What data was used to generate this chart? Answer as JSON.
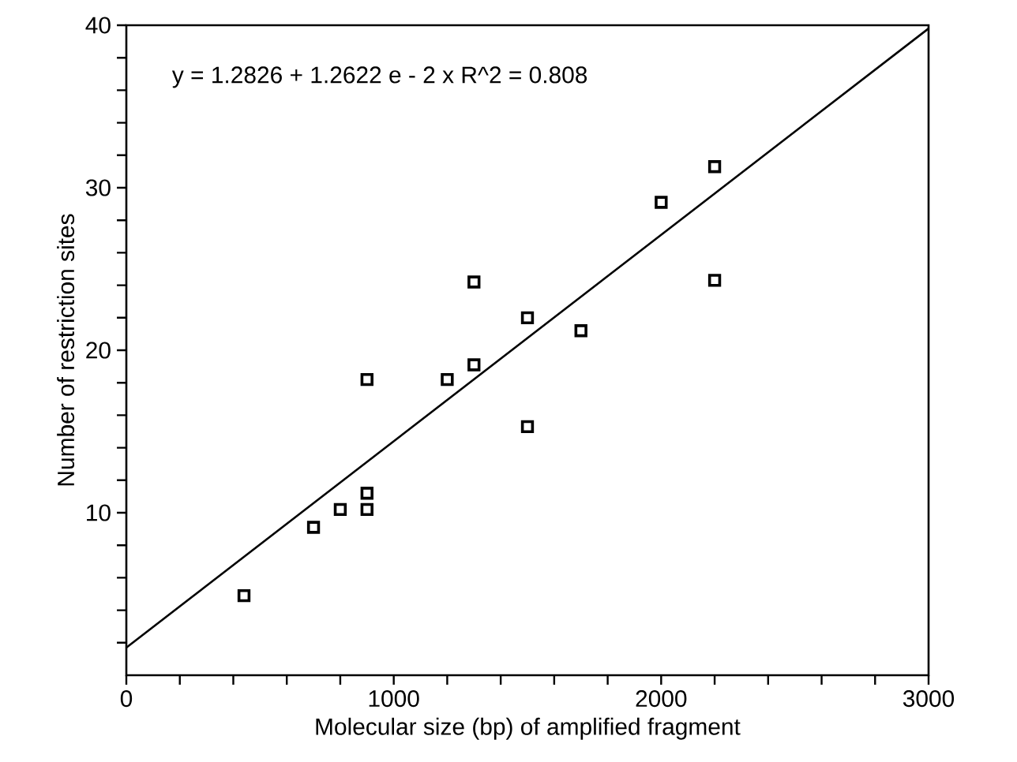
{
  "chart_data": {
    "type": "scatter",
    "xlabel": "Molecular size (bp) of amplified fragment",
    "ylabel": "Number of restriction sites",
    "annotations": [
      "y = 1.2826 + 1.2622 e - 2 x   R^2 = 0.808"
    ],
    "xlim": [
      0,
      3000
    ],
    "ylim": [
      0,
      40
    ],
    "xticks": [
      0,
      {
        "value": 200,
        "label": null
      },
      {
        "value": 400,
        "label": null
      },
      {
        "value": 600,
        "label": null
      },
      {
        "value": 800,
        "label": null
      },
      1000,
      {
        "value": 1200,
        "label": null
      },
      {
        "value": 1400,
        "label": null
      },
      {
        "value": 1600,
        "label": null
      },
      {
        "value": 1800,
        "label": null
      },
      2000,
      {
        "value": 2200,
        "label": null
      },
      {
        "value": 2400,
        "label": null
      },
      {
        "value": 2600,
        "label": null
      },
      {
        "value": 2800,
        "label": null
      },
      3000
    ],
    "yticks": [
      {
        "value": 2,
        "label": null
      },
      {
        "value": 4,
        "label": null
      },
      {
        "value": 6,
        "label": null
      },
      {
        "value": 8,
        "label": null
      },
      10,
      {
        "value": 12,
        "label": null
      },
      {
        "value": 14,
        "label": null
      },
      {
        "value": 16,
        "label": null
      },
      {
        "value": 18,
        "label": null
      },
      20,
      {
        "value": 22,
        "label": null
      },
      {
        "value": 24,
        "label": null
      },
      {
        "value": 26,
        "label": null
      },
      {
        "value": 28,
        "label": null
      },
      30,
      {
        "value": 32,
        "label": null
      },
      {
        "value": 34,
        "label": null
      },
      {
        "value": 36,
        "label": null
      },
      {
        "value": 38,
        "label": null
      },
      40
    ],
    "series": [
      {
        "marker": "square",
        "color": "#000000",
        "x": [
          440,
          700,
          800,
          900,
          900,
          900,
          1200,
          1300,
          1300,
          1500,
          1500,
          1700,
          2000,
          2200,
          2200
        ],
        "values": [
          4.9,
          9.1,
          10.2,
          10.2,
          11.2,
          18.2,
          18.2,
          19.1,
          24.2,
          22.0,
          15.3,
          21.2,
          29.1,
          31.3,
          24.3
        ]
      },
      {
        "type": "line",
        "marker": "none",
        "line_style": "solid",
        "color": "#000000",
        "x": [
          0,
          3000
        ],
        "values": [
          1.7,
          39.8
        ]
      }
    ]
  }
}
